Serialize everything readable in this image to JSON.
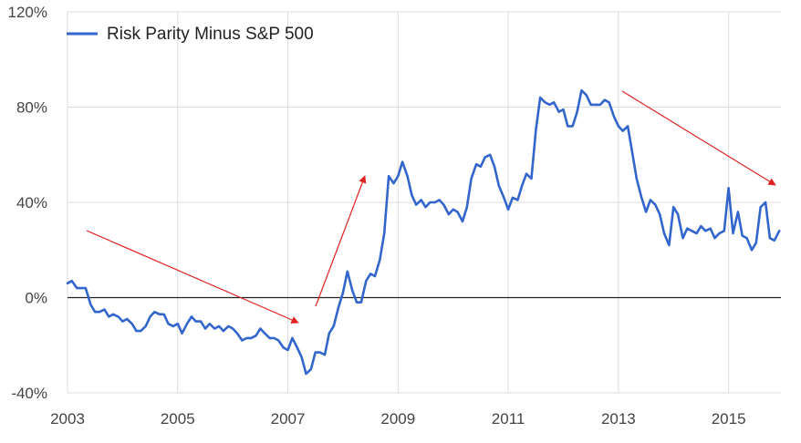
{
  "chart_data": {
    "type": "line",
    "legend": {
      "position": "top-left"
    },
    "grid": true,
    "x_range": [
      2003,
      2015.95
    ],
    "ylim": [
      -40,
      120
    ],
    "x_ticks": [
      2003,
      2005,
      2007,
      2009,
      2011,
      2013,
      2015
    ],
    "x_tick_labels": [
      "2003",
      "2005",
      "2007",
      "2009",
      "2011",
      "2013",
      "2015"
    ],
    "y_ticks": [
      -40,
      0,
      40,
      80,
      120
    ],
    "y_tick_labels": [
      "-40%",
      "0%",
      "40%",
      "80%",
      "120%"
    ],
    "colors": {
      "series": "#3366cc",
      "arrows": "#dd2222",
      "zero_line": "#222222",
      "grid": "#dddddd"
    },
    "series": [
      {
        "name": "Risk Parity Minus S&P 500",
        "x": [
          2003.0,
          2003.08,
          2003.17,
          2003.25,
          2003.33,
          2003.42,
          2003.5,
          2003.58,
          2003.67,
          2003.75,
          2003.83,
          2003.92,
          2004.0,
          2004.08,
          2004.17,
          2004.25,
          2004.33,
          2004.42,
          2004.5,
          2004.58,
          2004.67,
          2004.75,
          2004.83,
          2004.92,
          2005.0,
          2005.08,
          2005.17,
          2005.25,
          2005.33,
          2005.42,
          2005.5,
          2005.58,
          2005.67,
          2005.75,
          2005.83,
          2005.92,
          2006.0,
          2006.08,
          2006.17,
          2006.25,
          2006.33,
          2006.42,
          2006.5,
          2006.58,
          2006.67,
          2006.75,
          2006.83,
          2006.92,
          2007.0,
          2007.08,
          2007.17,
          2007.25,
          2007.33,
          2007.42,
          2007.5,
          2007.58,
          2007.67,
          2007.75,
          2007.83,
          2007.92,
          2008.0,
          2008.08,
          2008.17,
          2008.25,
          2008.33,
          2008.42,
          2008.5,
          2008.58,
          2008.67,
          2008.75,
          2008.83,
          2008.92,
          2009.0,
          2009.08,
          2009.17,
          2009.25,
          2009.33,
          2009.42,
          2009.5,
          2009.58,
          2009.67,
          2009.75,
          2009.83,
          2009.92,
          2010.0,
          2010.08,
          2010.17,
          2010.25,
          2010.33,
          2010.42,
          2010.5,
          2010.58,
          2010.67,
          2010.75,
          2010.83,
          2010.92,
          2011.0,
          2011.08,
          2011.17,
          2011.25,
          2011.33,
          2011.42,
          2011.5,
          2011.58,
          2011.67,
          2011.75,
          2011.83,
          2011.92,
          2012.0,
          2012.08,
          2012.17,
          2012.25,
          2012.33,
          2012.42,
          2012.5,
          2012.58,
          2012.67,
          2012.75,
          2012.83,
          2012.92,
          2013.0,
          2013.08,
          2013.17,
          2013.25,
          2013.33,
          2013.42,
          2013.5,
          2013.58,
          2013.67,
          2013.75,
          2013.83,
          2013.92,
          2014.0,
          2014.08,
          2014.17,
          2014.25,
          2014.33,
          2014.42,
          2014.5,
          2014.58,
          2014.67,
          2014.75,
          2014.83,
          2014.92,
          2015.0,
          2015.08,
          2015.17,
          2015.25,
          2015.33,
          2015.42,
          2015.5,
          2015.58,
          2015.67,
          2015.75,
          2015.83,
          2015.92
        ],
        "values": [
          6,
          7,
          4,
          4,
          4,
          -3,
          -6,
          -6,
          -5,
          -8,
          -7,
          -8,
          -10,
          -9,
          -11,
          -14,
          -14,
          -12,
          -8,
          -6,
          -7,
          -7,
          -11,
          -12,
          -11,
          -15,
          -11,
          -8,
          -10,
          -10,
          -13,
          -11,
          -13,
          -12,
          -14,
          -12,
          -13,
          -15,
          -18,
          -17,
          -17,
          -16,
          -13,
          -15,
          -17,
          -17,
          -18,
          -21,
          -22,
          -17,
          -21,
          -25,
          -32,
          -30,
          -23,
          -23,
          -24,
          -15,
          -12,
          -4,
          2,
          11,
          3,
          -2,
          -2,
          7,
          10,
          9,
          16,
          27,
          51,
          48,
          51,
          57,
          51,
          43,
          39,
          41,
          38,
          40,
          40,
          41,
          39,
          35,
          37,
          36,
          32,
          38,
          50,
          56,
          55,
          59,
          60,
          55,
          47,
          42,
          37,
          42,
          41,
          47,
          52,
          50,
          70,
          84,
          82,
          81,
          82,
          78,
          79,
          72,
          72,
          78,
          87,
          85,
          81,
          81,
          81,
          83,
          82,
          76,
          72,
          70,
          72,
          61,
          50,
          42,
          36,
          41,
          39,
          35,
          27,
          22,
          38,
          35,
          25,
          29,
          28,
          27,
          30,
          28,
          29,
          25,
          27,
          28,
          46,
          27,
          36,
          26,
          25,
          20,
          23,
          38,
          40,
          25,
          24,
          28
        ]
      }
    ]
  }
}
